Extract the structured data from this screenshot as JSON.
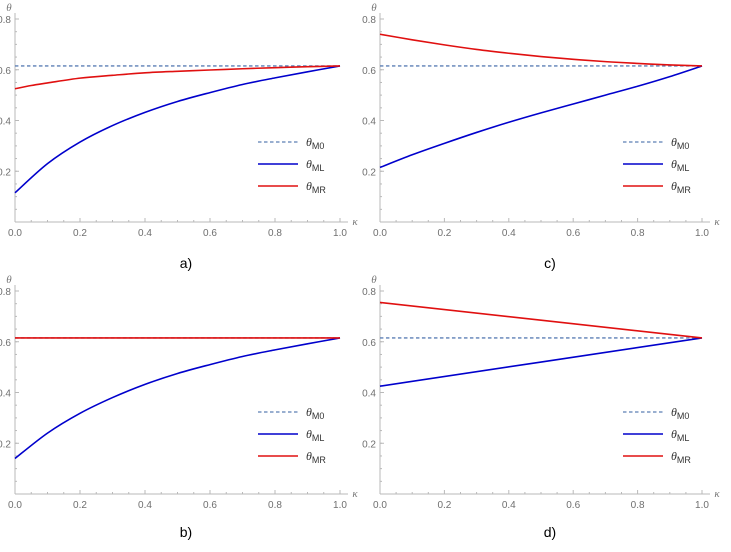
{
  "chart_data": [
    {
      "id": "a",
      "caption": "a)",
      "type": "line",
      "xlabel": "κ",
      "ylabel": "θ",
      "xlim": [
        0,
        1
      ],
      "ylim": [
        0,
        0.8
      ],
      "xticks": [
        "0.0",
        "0.2",
        "0.4",
        "0.6",
        "0.8",
        "1.0"
      ],
      "yticks": [
        "0.2",
        "0.4",
        "0.6",
        "0.8"
      ],
      "legend": [
        {
          "sym": "θ",
          "sub": "M0",
          "color": "#5c7fb5",
          "style": "dashed"
        },
        {
          "sym": "θ",
          "sub": "ML",
          "color": "#0000cc",
          "style": "solid"
        },
        {
          "sym": "θ",
          "sub": "MR",
          "color": "#e01010",
          "style": "solid"
        }
      ],
      "series": [
        {
          "name": "θM0",
          "x": [
            0,
            1
          ],
          "values": [
            0.615,
            0.615
          ]
        },
        {
          "name": "θML",
          "x": [
            0,
            0.1,
            0.2,
            0.3,
            0.4,
            0.5,
            0.6,
            0.7,
            0.8,
            0.9,
            1.0
          ],
          "values": [
            0.115,
            0.23,
            0.315,
            0.38,
            0.432,
            0.475,
            0.51,
            0.542,
            0.568,
            0.592,
            0.615
          ]
        },
        {
          "name": "θMR",
          "x": [
            0,
            0.05,
            0.1,
            0.2,
            0.3,
            0.4,
            0.5,
            0.6,
            0.7,
            0.8,
            0.9,
            1.0
          ],
          "values": [
            0.525,
            0.538,
            0.548,
            0.567,
            0.578,
            0.588,
            0.594,
            0.599,
            0.604,
            0.608,
            0.612,
            0.615
          ]
        }
      ]
    },
    {
      "id": "c",
      "caption": "c)",
      "type": "line",
      "xlabel": "κ",
      "ylabel": "θ",
      "xlim": [
        0,
        1
      ],
      "ylim": [
        0,
        0.8
      ],
      "xticks": [
        "0.0",
        "0.2",
        "0.4",
        "0.6",
        "0.8",
        "1.0"
      ],
      "yticks": [
        "0.2",
        "0.4",
        "0.6",
        "0.8"
      ],
      "legend": [
        {
          "sym": "θ",
          "sub": "M0",
          "color": "#5c7fb5",
          "style": "dashed"
        },
        {
          "sym": "θ",
          "sub": "ML",
          "color": "#0000cc",
          "style": "solid"
        },
        {
          "sym": "θ",
          "sub": "MR",
          "color": "#e01010",
          "style": "solid"
        }
      ],
      "series": [
        {
          "name": "θM0",
          "x": [
            0,
            1
          ],
          "values": [
            0.615,
            0.615
          ]
        },
        {
          "name": "θML",
          "x": [
            0,
            0.1,
            0.2,
            0.3,
            0.4,
            0.5,
            0.6,
            0.7,
            0.8,
            0.9,
            1.0
          ],
          "values": [
            0.215,
            0.265,
            0.31,
            0.353,
            0.393,
            0.43,
            0.465,
            0.5,
            0.535,
            0.573,
            0.615
          ]
        },
        {
          "name": "θMR",
          "x": [
            0,
            0.1,
            0.2,
            0.3,
            0.4,
            0.5,
            0.6,
            0.7,
            0.8,
            0.9,
            1.0
          ],
          "values": [
            0.74,
            0.718,
            0.698,
            0.68,
            0.665,
            0.652,
            0.641,
            0.632,
            0.625,
            0.619,
            0.615
          ]
        }
      ]
    },
    {
      "id": "b",
      "caption": "b)",
      "type": "line",
      "xlabel": "κ",
      "ylabel": "θ",
      "xlim": [
        0,
        1
      ],
      "ylim": [
        0,
        0.8
      ],
      "xticks": [
        "0.0",
        "0.2",
        "0.4",
        "0.6",
        "0.8",
        "1.0"
      ],
      "yticks": [
        "0.2",
        "0.4",
        "0.6",
        "0.8"
      ],
      "legend": [
        {
          "sym": "θ",
          "sub": "M0",
          "color": "#5c7fb5",
          "style": "dashed"
        },
        {
          "sym": "θ",
          "sub": "ML",
          "color": "#0000cc",
          "style": "solid"
        },
        {
          "sym": "θ",
          "sub": "MR",
          "color": "#e01010",
          "style": "solid"
        }
      ],
      "series": [
        {
          "name": "θM0",
          "x": [
            0,
            1
          ],
          "values": [
            0.615,
            0.615
          ]
        },
        {
          "name": "θML",
          "x": [
            0,
            0.1,
            0.2,
            0.3,
            0.4,
            0.5,
            0.6,
            0.7,
            0.8,
            0.9,
            1.0
          ],
          "values": [
            0.14,
            0.24,
            0.318,
            0.38,
            0.432,
            0.475,
            0.51,
            0.542,
            0.568,
            0.592,
            0.615
          ]
        },
        {
          "name": "θMR",
          "x": [
            0,
            1
          ],
          "values": [
            0.615,
            0.615
          ]
        }
      ]
    },
    {
      "id": "d",
      "caption": "d)",
      "type": "line",
      "xlabel": "κ",
      "ylabel": "θ",
      "xlim": [
        0,
        1
      ],
      "ylim": [
        0,
        0.8
      ],
      "xticks": [
        "0.0",
        "0.2",
        "0.4",
        "0.6",
        "0.8",
        "1.0"
      ],
      "yticks": [
        "0.2",
        "0.4",
        "0.6",
        "0.8"
      ],
      "legend": [
        {
          "sym": "θ",
          "sub": "M0",
          "color": "#5c7fb5",
          "style": "dashed"
        },
        {
          "sym": "θ",
          "sub": "ML",
          "color": "#0000cc",
          "style": "solid"
        },
        {
          "sym": "θ",
          "sub": "MR",
          "color": "#e01010",
          "style": "solid"
        }
      ],
      "series": [
        {
          "name": "θM0",
          "x": [
            0,
            1
          ],
          "values": [
            0.615,
            0.615
          ]
        },
        {
          "name": "θML",
          "x": [
            0,
            1
          ],
          "values": [
            0.425,
            0.615
          ]
        },
        {
          "name": "θMR",
          "x": [
            0,
            1
          ],
          "values": [
            0.755,
            0.615
          ]
        }
      ]
    }
  ]
}
